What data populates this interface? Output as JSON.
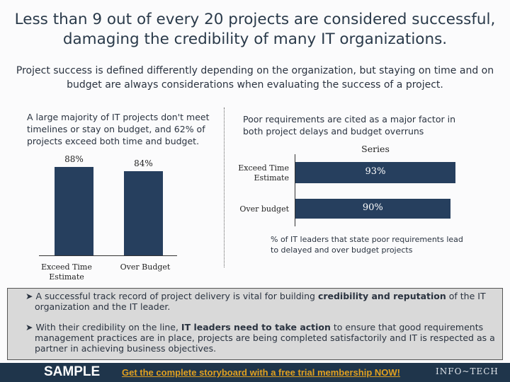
{
  "title": "Less than 9 out of every 20 projects are considered successful, damaging the credibility of many IT organizations.",
  "subtitle": "Project success is defined differently depending on the organization, but staying on time and on budget are always considerations when evaluating the success of a project.",
  "left_note": "A large majority of IT projects don't meet timelines or stay on budget, and 62% of projects exceed both time and budget.",
  "right_note": "Poor requirements are cited as a major factor in both project delays and budget overruns",
  "chart_data": [
    {
      "type": "bar",
      "orientation": "vertical",
      "categories": [
        "Exceed Time Estimate",
        "Over Budget"
      ],
      "values": [
        88,
        84
      ],
      "labels": [
        "88%",
        "84%"
      ],
      "ylim": [
        0,
        100
      ],
      "grid": false,
      "color": "#263f5e"
    },
    {
      "type": "bar",
      "orientation": "horizontal",
      "title": "Series",
      "categories": [
        "Exceed Time Estimate",
        "Over budget"
      ],
      "values": [
        93,
        90
      ],
      "labels": [
        "93%",
        "90%"
      ],
      "xlim": [
        0,
        100
      ],
      "xlabel": "% of IT leaders that state poor requirements lead to delayed and over budget projects",
      "grid": false,
      "color": "#263f5e"
    }
  ],
  "box": {
    "p1_pre": "A successful track record of project delivery is vital for building ",
    "p1_bold": "credibility and reputation",
    "p1_post": " of the IT organization and the IT leader.",
    "p2_pre": "With their credibility on the line, ",
    "p2_bold": "IT leaders need to take action",
    "p2_post": " to ensure that good requirements management practices are in place, projects are being completed satisfactorily and IT is respected as a partner in achieving business objectives."
  },
  "footer": {
    "sample": "SAMPLE",
    "cta": "Get the complete storyboard with a free trial membership NOW!",
    "logo": "INFO~TECH"
  }
}
